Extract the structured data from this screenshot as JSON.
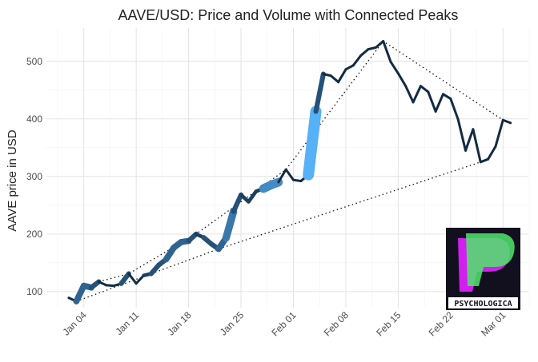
{
  "chart_data": {
    "type": "line",
    "title": "AAVE/USD: Price and Volume with Connected Peaks",
    "y_label": "AAVE price in USD",
    "x": [
      "Jan 02",
      "Jan 03",
      "Jan 04",
      "Jan 05",
      "Jan 06",
      "Jan 07",
      "Jan 08",
      "Jan 09",
      "Jan 10",
      "Jan 11",
      "Jan 12",
      "Jan 13",
      "Jan 14",
      "Jan 15",
      "Jan 16",
      "Jan 17",
      "Jan 18",
      "Jan 19",
      "Jan 20",
      "Jan 21",
      "Jan 22",
      "Jan 23",
      "Jan 24",
      "Jan 25",
      "Jan 26",
      "Jan 27",
      "Jan 28",
      "Jan 29",
      "Jan 30",
      "Jan 31",
      "Feb 01",
      "Feb 02",
      "Feb 03",
      "Feb 04",
      "Feb 05",
      "Feb 06",
      "Feb 07",
      "Feb 08",
      "Feb 09",
      "Feb 10",
      "Feb 11",
      "Feb 12",
      "Feb 13",
      "Feb 14",
      "Feb 15",
      "Feb 16",
      "Feb 17",
      "Feb 18",
      "Feb 19",
      "Feb 20",
      "Feb 21",
      "Feb 22",
      "Feb 23",
      "Feb 24",
      "Feb 25",
      "Feb 26",
      "Feb 27",
      "Feb 28",
      "Mar 01",
      "Mar 02"
    ],
    "values": [
      89,
      83,
      110,
      107,
      117,
      111,
      110,
      114,
      131,
      114,
      128,
      131,
      146,
      156,
      176,
      186,
      188,
      200,
      194,
      183,
      174,
      193,
      239,
      268,
      256,
      274,
      279,
      285,
      290,
      312,
      294,
      292,
      303,
      413,
      478,
      475,
      464,
      486,
      493,
      510,
      521,
      524,
      535,
      499,
      479,
      457,
      429,
      457,
      447,
      413,
      443,
      435,
      399,
      345,
      382,
      325,
      330,
      352,
      398,
      393
    ],
    "volume": [
      3,
      3,
      6,
      6,
      5,
      3,
      3,
      3,
      5,
      3,
      3,
      4,
      5,
      5,
      6,
      6,
      6,
      5,
      4,
      5,
      5,
      6,
      7,
      5,
      4,
      4,
      4,
      8,
      8,
      3,
      3,
      3,
      3,
      10,
      5,
      3,
      3,
      3,
      3,
      3,
      3,
      3,
      3,
      3,
      3,
      3,
      3,
      3,
      3,
      3,
      3,
      3,
      3,
      3,
      3,
      3,
      3,
      3,
      3,
      3
    ],
    "color_low": "#132B43",
    "color_high": "#56B1F7",
    "ylim": [
      72,
      558
    ],
    "yticks": [
      100,
      200,
      300,
      400,
      500
    ],
    "xticks": [
      "Jan 04",
      "Jan 11",
      "Jan 18",
      "Jan 25",
      "Feb 01",
      "Feb 08",
      "Feb 15",
      "Feb 22",
      "Mar 01"
    ],
    "grid": true,
    "logo": {
      "text": "PSYCHOLOGICA"
    }
  }
}
